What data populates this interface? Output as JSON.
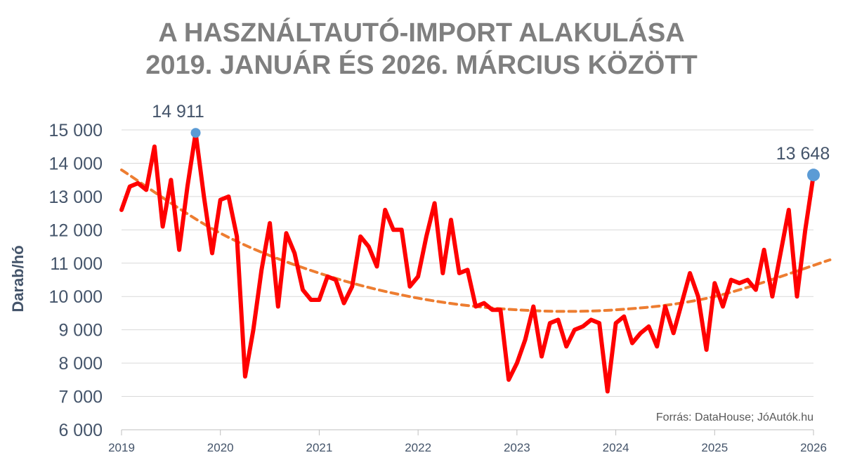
{
  "chart_data": {
    "type": "line",
    "title_line1": "A HASZNÁLTAUTÓ-IMPORT ALAKULÁSA",
    "title_line2": "2019. JANUÁR ÉS 2026. MÁRCIUS KÖZÖTT",
    "ylabel": "Darab/hó",
    "source": "Forrás: DataHouse; JóAutók.hu",
    "ylim": [
      6000,
      15000
    ],
    "yticks": [
      {
        "value": 6000,
        "label": "6 000"
      },
      {
        "value": 7000,
        "label": "7 000"
      },
      {
        "value": 8000,
        "label": "8 000"
      },
      {
        "value": 9000,
        "label": "9 000"
      },
      {
        "value": 10000,
        "label": "10 000"
      },
      {
        "value": 11000,
        "label": "11 000"
      },
      {
        "value": 12000,
        "label": "12 000"
      },
      {
        "value": 13000,
        "label": "13 000"
      },
      {
        "value": 14000,
        "label": "14 000"
      },
      {
        "value": 15000,
        "label": "15 000"
      }
    ],
    "xticks": [
      "2019",
      "2020",
      "2021",
      "2022",
      "2023",
      "2024",
      "2025",
      "2026"
    ],
    "grid": true,
    "colors": {
      "series": "#ff0000",
      "trend": "#ed7d31",
      "marker": "#5b9bd5",
      "grid": "#d9d9d9"
    },
    "series": [
      {
        "x_start": "2019-01",
        "frequency": "monthly",
        "values": [
          12600,
          13300,
          13400,
          13200,
          14500,
          12100,
          13500,
          11400,
          13300,
          14911,
          13000,
          11300,
          12900,
          13000,
          11800,
          7600,
          9000,
          10800,
          12200,
          9700,
          11900,
          11300,
          10200,
          9900,
          9900,
          10600,
          10500,
          9800,
          10300,
          11800,
          11500,
          10900,
          12600,
          12000,
          12000,
          10300,
          10600,
          11800,
          12800,
          10700,
          12300,
          10700,
          10800,
          9700,
          9800,
          9600,
          9600,
          7500,
          8000,
          8700,
          9700,
          8200,
          9200,
          9300,
          8500,
          9000,
          9100,
          9300,
          9200,
          7150,
          9200,
          9400,
          8600,
          8900,
          9100,
          8500,
          9700,
          8900,
          9800,
          10700,
          10000,
          8400,
          10400,
          9700,
          10500,
          10400,
          10500,
          10200,
          11400,
          10000,
          11300,
          12600,
          10000,
          12000,
          13648
        ]
      }
    ],
    "trend": {
      "style": "dashed",
      "x": [
        "2019-01",
        "2020-01",
        "2021-01",
        "2022-01",
        "2023-01",
        "2024-01",
        "2025-01",
        "2026-03"
      ],
      "values": [
        13800,
        11900,
        10700,
        9950,
        9600,
        9600,
        10000,
        11100
      ]
    },
    "annotations": [
      {
        "point_index": 9,
        "label": "14 911"
      },
      {
        "point_index": 84,
        "label": "13 648"
      }
    ]
  }
}
